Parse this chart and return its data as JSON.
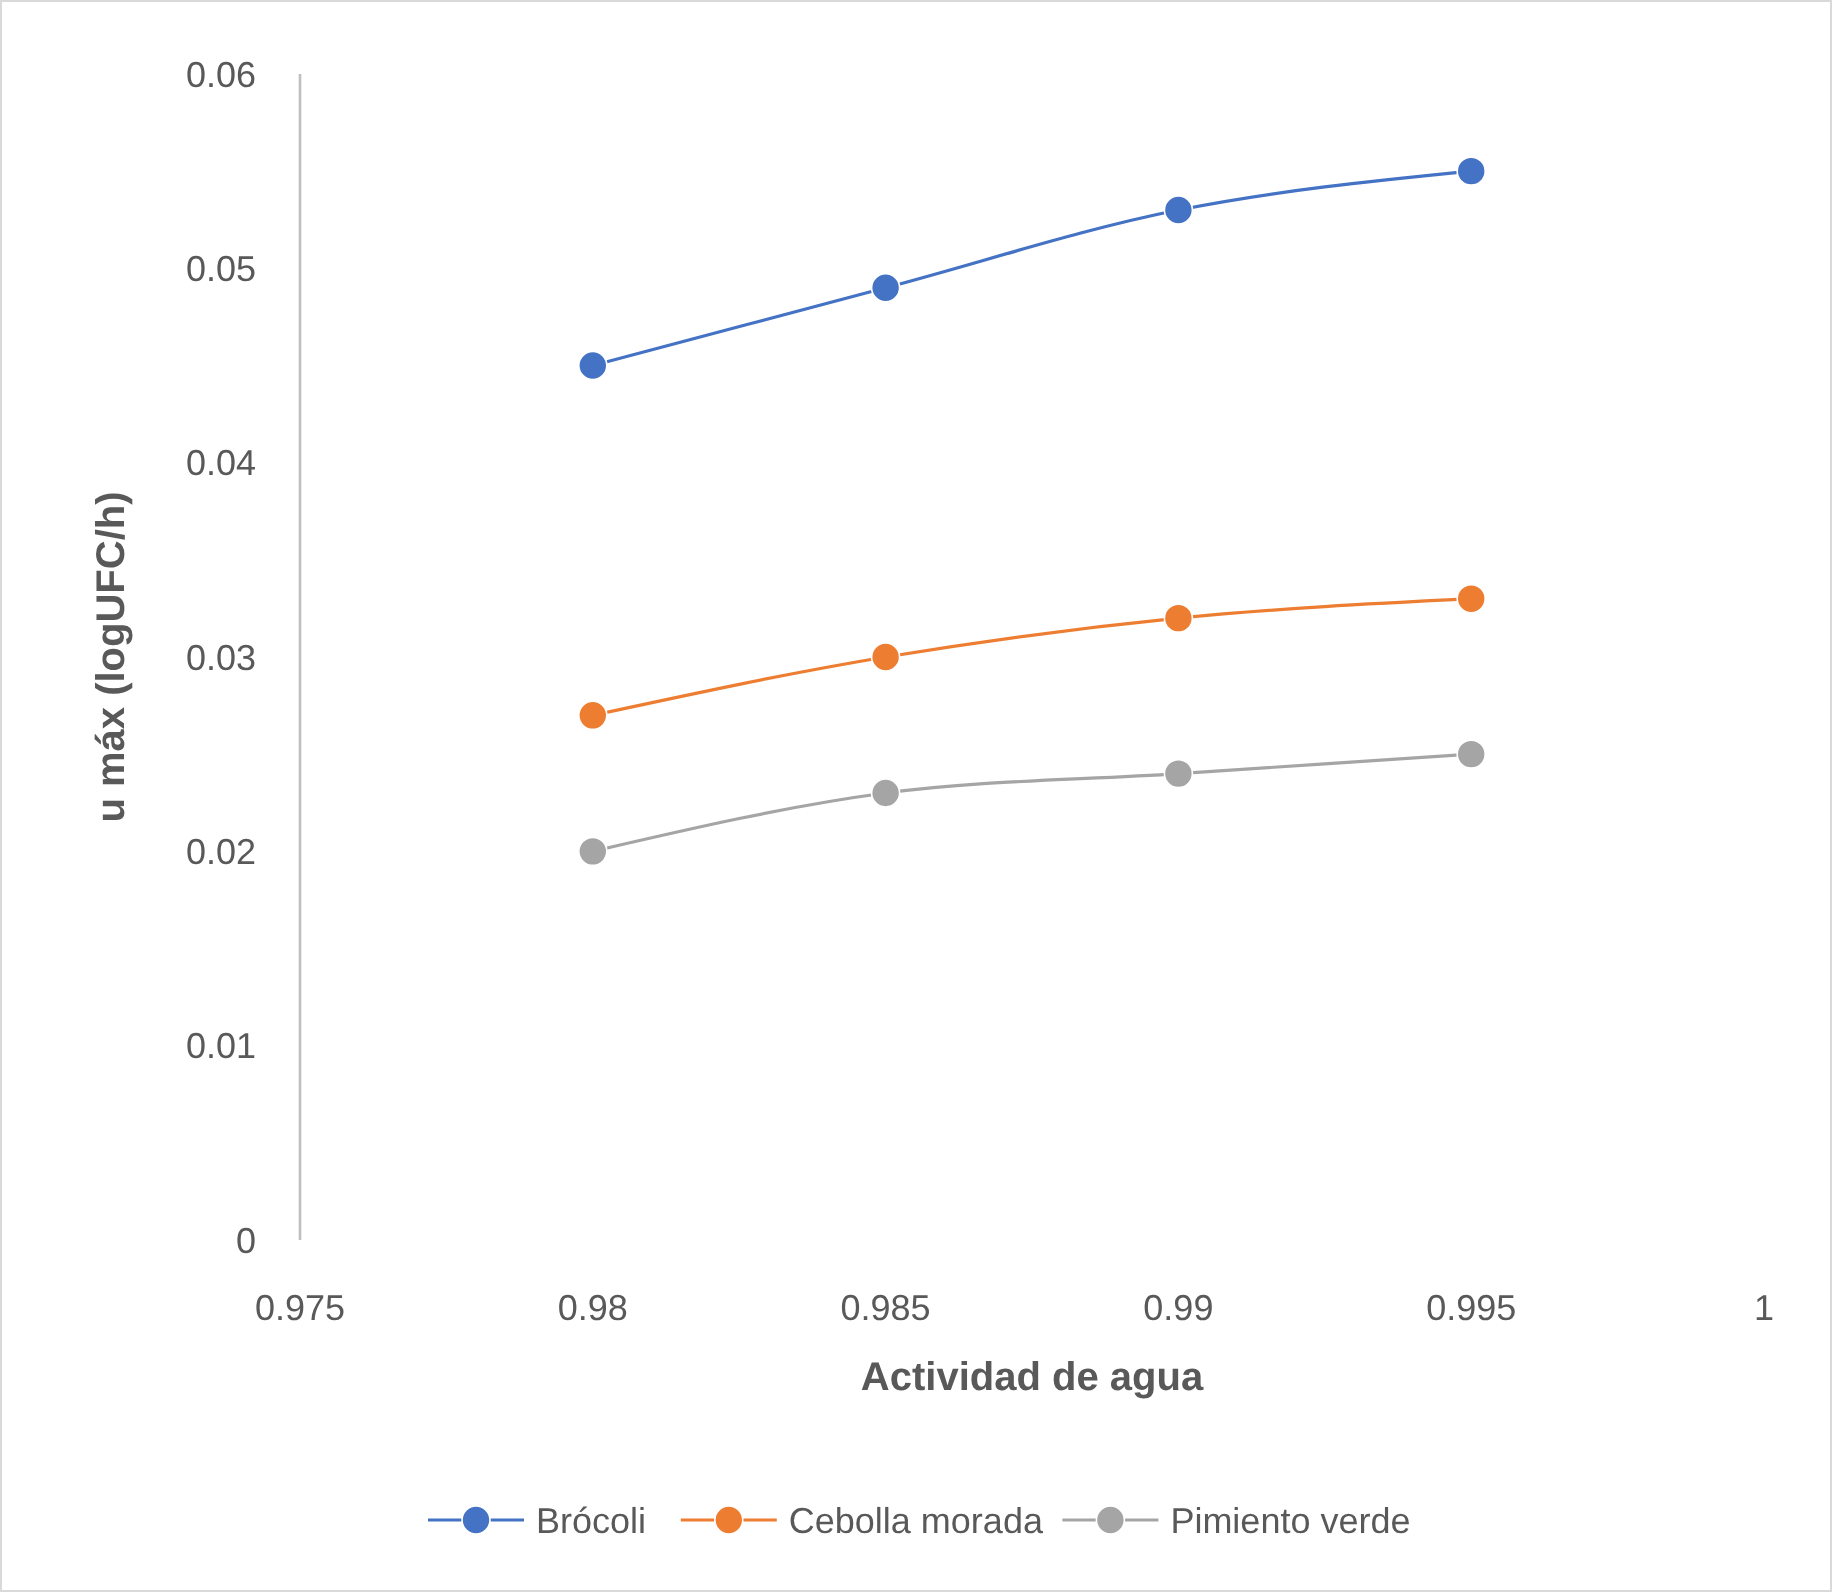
{
  "chart_data": {
    "type": "line",
    "xlabel": "Actividad de agua",
    "ylabel": "u máx (logUFC/h)",
    "x": [
      0.98,
      0.985,
      0.99,
      0.995
    ],
    "series": [
      {
        "name": "Brócoli",
        "color": "#4472c4",
        "values": [
          0.045,
          0.049,
          0.053,
          0.055
        ]
      },
      {
        "name": "Cebolla morada",
        "color": "#ed7d31",
        "values": [
          0.027,
          0.03,
          0.032,
          0.033
        ]
      },
      {
        "name": "Pimiento verde",
        "color": "#a5a5a5",
        "values": [
          0.02,
          0.023,
          0.024,
          0.025
        ]
      }
    ],
    "xlim": [
      0.975,
      1
    ],
    "xticks": [
      0.975,
      0.98,
      0.985,
      0.99,
      0.995,
      1
    ],
    "ylim": [
      0,
      0.06
    ],
    "yticks": [
      0,
      0.01,
      0.02,
      0.03,
      0.04,
      0.05,
      0.06
    ],
    "grid": false,
    "legend": "bottom",
    "marker": "circle",
    "line_style": "solid"
  }
}
